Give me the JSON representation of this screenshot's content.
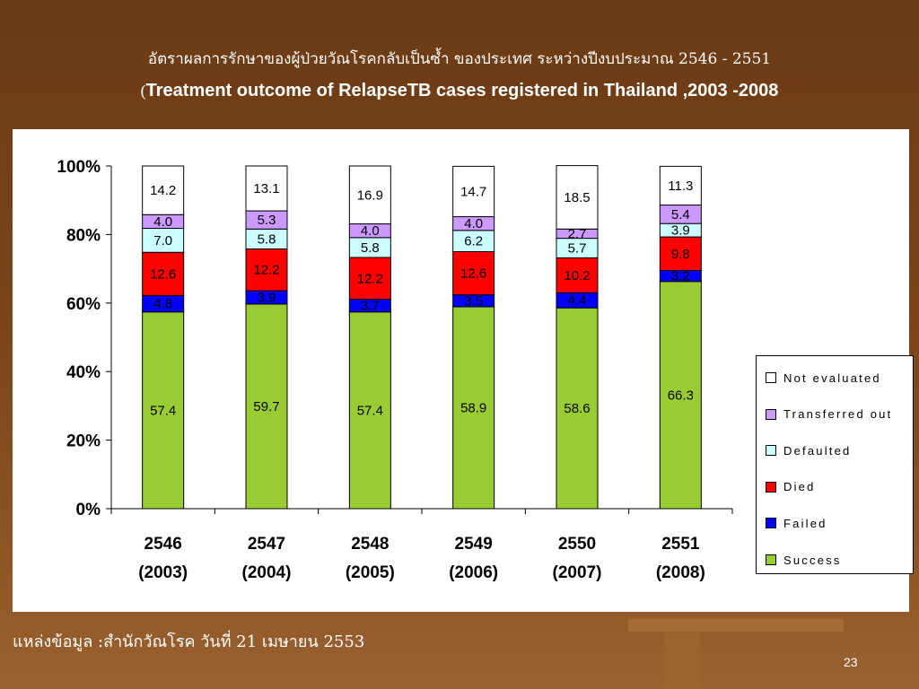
{
  "slide": {
    "title_thai": "อัตราผลการรักษาของผู้ป่วยวัณโรคกลับเป็นซ้ำ ของประเทศ ระหว่างปีงบประมาณ 2546 - 2551",
    "title_en_paren": "(",
    "title_en": "Treatment outcome of  RelapseTB cases registered in Thailand ,2003 -2008",
    "source": "แหล่งข้อมูล :สำนักวัณโรค วันที่ 21 เมษายน 2553",
    "page_number": "23"
  },
  "legend": [
    {
      "label": "Not evaluated",
      "color": "#ffffff"
    },
    {
      "label": "Transferred out",
      "color": "#cc99ff"
    },
    {
      "label": "Defaulted",
      "color": "#ccffff"
    },
    {
      "label": "Died",
      "color": "#ff0000"
    },
    {
      "label": "Failed",
      "color": "#0000ff"
    },
    {
      "label": "Success",
      "color": "#99cc33"
    }
  ],
  "chart_data": {
    "type": "bar",
    "stacked": "percent",
    "categories": [
      "2546 (2003)",
      "2547 (2004)",
      "2548 (2005)",
      "2549 (2006)",
      "2550 (2007)",
      "2551 (2008)"
    ],
    "category_lines": [
      [
        "2546",
        "(2003)"
      ],
      [
        "2547",
        "(2004)"
      ],
      [
        "2548",
        "(2005)"
      ],
      [
        "2549",
        "(2006)"
      ],
      [
        "2550",
        "(2007)"
      ],
      [
        "2551",
        "(2008)"
      ]
    ],
    "series": [
      {
        "name": "Success",
        "color": "#99cc33",
        "values": [
          57.4,
          59.7,
          57.4,
          58.9,
          58.6,
          66.3
        ],
        "labels": [
          "57.4",
          "59.7",
          "57.4",
          "58.9",
          "58.6",
          "66.3"
        ]
      },
      {
        "name": "Failed",
        "color": "#0000ff",
        "values": [
          4.8,
          3.9,
          3.7,
          3.5,
          4.4,
          3.2
        ],
        "labels": [
          "4.8",
          "3.9",
          "3.7",
          "3.5",
          "4.4",
          "3.2"
        ]
      },
      {
        "name": "Died",
        "color": "#ff0000",
        "values": [
          12.6,
          12.2,
          12.2,
          12.6,
          10.2,
          9.8
        ],
        "labels": [
          "12.6",
          "12.2",
          "12.2",
          "12.6",
          "10.2",
          "9.8"
        ]
      },
      {
        "name": "Defaulted",
        "color": "#ccffff",
        "values": [
          7.0,
          5.8,
          5.8,
          6.2,
          5.7,
          3.9
        ],
        "labels": [
          "7.0",
          "5.8",
          "5.8",
          "6.2",
          "5.7",
          "3.9"
        ]
      },
      {
        "name": "Transferred out",
        "color": "#cc99ff",
        "values": [
          4.0,
          5.3,
          4.0,
          4.0,
          2.7,
          5.4
        ],
        "labels": [
          "4.0",
          "5.3",
          "4.0",
          "4.0",
          "2.7",
          "5.4"
        ]
      },
      {
        "name": "Not evaluated",
        "color": "#ffffff",
        "values": [
          14.2,
          13.1,
          16.9,
          14.7,
          18.5,
          11.3
        ],
        "labels": [
          "14.2",
          "13.1",
          "16.9",
          "14.7",
          "18.5",
          "11.3"
        ]
      }
    ],
    "yticks": [
      "0%",
      "20%",
      "40%",
      "60%",
      "80%",
      "100%"
    ],
    "ylim": [
      0,
      100
    ],
    "grid": false,
    "legend_position": "right"
  }
}
